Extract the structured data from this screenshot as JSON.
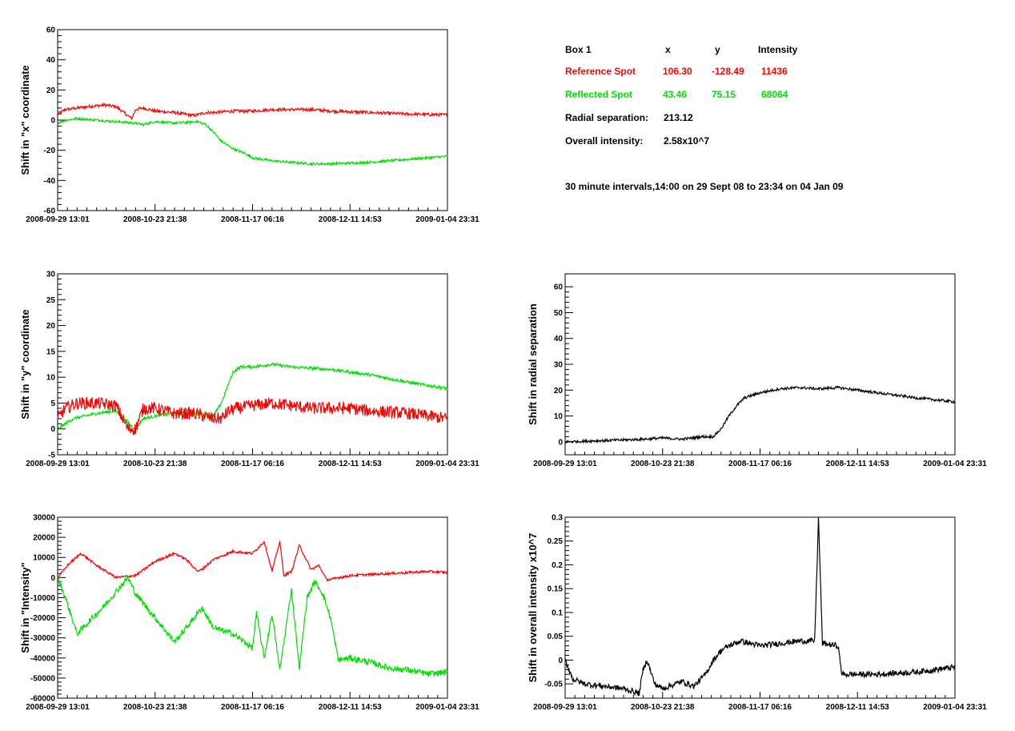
{
  "info": {
    "header": {
      "c0": "Box 1",
      "c1": "x",
      "c2": "y",
      "c3": "Intensity"
    },
    "reference": {
      "label": "Reference Spot",
      "x": "106.30",
      "y": "-128.49",
      "intensity": "11436"
    },
    "reflected": {
      "label": "Reflected Spot",
      "x": "43.46",
      "y": "75.15",
      "intensity": "68064"
    },
    "radial": {
      "label": "Radial separation:",
      "value": "213.12"
    },
    "overall": {
      "label": "Overall intensity:",
      "value": "2.58x10^7"
    },
    "note": "30 minute intervals,14:00 on 29 Sept 08 to 23:34 on 04 Jan 09"
  },
  "colors": {
    "reference": "#ff0000",
    "reflected": "#00dd00",
    "single": "#000000"
  },
  "chart_data": [
    {
      "id": "x_shift",
      "type": "line",
      "ylabel": "Shift in \"x\" coordinate",
      "ylim": [
        -60,
        60
      ],
      "yticks": [
        -60,
        -40,
        -20,
        0,
        20,
        40,
        60
      ],
      "xticks": [
        "2008-09-29 13:01",
        "2008-10-23 21:38",
        "2008-11-17 06:16",
        "2008-12-11 14:53",
        "2009-01-04 23:31"
      ],
      "series": [
        {
          "color": "reference",
          "noise": 1.0,
          "x": [
            0,
            0.02,
            0.05,
            0.08,
            0.12,
            0.15,
            0.19,
            0.2,
            0.22,
            0.25,
            0.3,
            0.35,
            0.38,
            0.4,
            0.45,
            0.5,
            0.55,
            0.6,
            0.65,
            0.7,
            0.8,
            0.9,
            1.0
          ],
          "values": [
            4,
            7,
            8,
            9,
            10,
            9,
            1,
            7,
            8,
            6,
            5,
            3,
            5,
            5,
            6,
            6,
            7,
            7,
            7,
            6,
            5,
            4,
            3.5
          ]
        },
        {
          "color": "reflected",
          "noise": 0.8,
          "x": [
            0,
            0.02,
            0.05,
            0.1,
            0.15,
            0.2,
            0.22,
            0.25,
            0.3,
            0.36,
            0.38,
            0.4,
            0.42,
            0.45,
            0.48,
            0.5,
            0.55,
            0.6,
            0.65,
            0.7,
            0.8,
            0.9,
            1.0
          ],
          "values": [
            -2,
            0,
            1,
            0,
            -1,
            -2,
            -3,
            -1,
            -2,
            -1,
            -3,
            -8,
            -14,
            -19,
            -22,
            -25,
            -27,
            -28,
            -29,
            -29,
            -28,
            -26,
            -24
          ]
        }
      ]
    },
    {
      "id": "y_shift",
      "type": "line",
      "ylabel": "Shift in \"y\" coordinate",
      "ylim": [
        -5,
        30
      ],
      "yticks": [
        -5,
        0,
        5,
        10,
        15,
        20,
        25,
        30
      ],
      "xticks": [
        "2008-09-29 13:01",
        "2008-10-23 21:38",
        "2008-11-17 06:16",
        "2008-12-11 14:53",
        "2009-01-04 23:31"
      ],
      "series": [
        {
          "color": "reflected",
          "noise": 0.3,
          "x": [
            0,
            0.04,
            0.1,
            0.15,
            0.19,
            0.2,
            0.22,
            0.25,
            0.3,
            0.35,
            0.4,
            0.42,
            0.44,
            0.45,
            0.47,
            0.5,
            0.55,
            0.6,
            0.7,
            0.8,
            0.9,
            1.0
          ],
          "values": [
            0,
            2,
            3,
            3.5,
            0.5,
            0,
            2,
            2.5,
            3,
            3,
            2.5,
            5,
            9,
            11,
            12,
            12,
            12.5,
            12,
            11.5,
            10.5,
            9,
            7.8
          ]
        },
        {
          "color": "reference",
          "noise": 1.2,
          "x": [
            0,
            0.02,
            0.05,
            0.1,
            0.15,
            0.18,
            0.2,
            0.22,
            0.25,
            0.3,
            0.35,
            0.4,
            0.42,
            0.44,
            0.46,
            0.5,
            0.55,
            0.6,
            0.65,
            0.7,
            0.75,
            0.8,
            0.9,
            1.0
          ],
          "values": [
            2,
            4,
            5,
            5,
            4.5,
            0,
            0,
            4,
            4,
            3,
            3,
            2,
            2,
            3.5,
            4,
            4.5,
            5,
            4.5,
            4,
            4,
            4,
            3.5,
            3,
            2
          ]
        }
      ]
    },
    {
      "id": "radial_shift",
      "type": "line",
      "ylabel": "Shift in radial separation",
      "ylim": [
        -5,
        65
      ],
      "yticks": [
        0,
        10,
        20,
        30,
        40,
        50,
        60
      ],
      "xticks": [
        "2008-09-29 13:01",
        "2008-10-23 21:38",
        "2008-11-17 06:16",
        "2008-12-11 14:53",
        "2009-01-04 23:31"
      ],
      "series": [
        {
          "color": "single",
          "noise": 0.5,
          "x": [
            0,
            0.1,
            0.2,
            0.25,
            0.3,
            0.35,
            0.38,
            0.4,
            0.42,
            0.44,
            0.46,
            0.5,
            0.55,
            0.6,
            0.65,
            0.7,
            0.75,
            0.8,
            0.9,
            1.0
          ],
          "values": [
            0,
            0.5,
            1,
            1.5,
            1,
            2,
            2,
            5,
            10,
            14,
            17,
            19,
            20.5,
            21,
            20.5,
            21,
            20,
            19,
            17,
            15.5
          ]
        }
      ]
    },
    {
      "id": "intensity_shift",
      "type": "line",
      "ylabel": "Shift in \"Intensity\"",
      "ylim": [
        -60000,
        30000
      ],
      "yticks": [
        -60000,
        -50000,
        -40000,
        -30000,
        -20000,
        -10000,
        0,
        10000,
        20000,
        30000
      ],
      "xticks": [
        "2008-09-29 13:01",
        "2008-10-23 21:38",
        "2008-11-17 06:16",
        "2008-12-11 14:53",
        "2009-01-04 23:31"
      ],
      "series": [
        {
          "color": "reference",
          "noise": 600,
          "x": [
            0,
            0.03,
            0.06,
            0.1,
            0.15,
            0.2,
            0.25,
            0.3,
            0.33,
            0.36,
            0.37,
            0.4,
            0.45,
            0.5,
            0.53,
            0.55,
            0.57,
            0.58,
            0.6,
            0.62,
            0.65,
            0.67,
            0.69,
            0.7,
            0.72,
            0.74,
            0.75,
            0.8,
            0.85,
            0.9,
            0.95,
            1.0
          ],
          "values": [
            0,
            7000,
            12000,
            6000,
            0,
            1000,
            8000,
            12000,
            9000,
            3000,
            4000,
            9000,
            13000,
            12000,
            18000,
            3000,
            18000,
            1000,
            3000,
            16000,
            4000,
            6000,
            -1000,
            -1000,
            0,
            500,
            1000,
            1500,
            2000,
            2500,
            3000,
            2500
          ]
        },
        {
          "color": "reflected",
          "noise": 1500,
          "x": [
            0,
            0.02,
            0.05,
            0.08,
            0.12,
            0.15,
            0.18,
            0.2,
            0.25,
            0.3,
            0.33,
            0.37,
            0.4,
            0.45,
            0.5,
            0.51,
            0.53,
            0.55,
            0.57,
            0.6,
            0.62,
            0.64,
            0.66,
            0.68,
            0.7,
            0.72,
            0.75,
            0.8,
            0.85,
            0.9,
            0.95,
            1.0
          ],
          "values": [
            0,
            -10000,
            -28000,
            -22000,
            -14000,
            -7000,
            0,
            -8000,
            -20000,
            -32000,
            -25000,
            -15000,
            -25000,
            -28000,
            -35000,
            -18000,
            -40000,
            -18000,
            -46000,
            -6000,
            -45000,
            -10000,
            -2000,
            -8000,
            -20000,
            -41000,
            -40000,
            -42000,
            -45000,
            -46000,
            -48000,
            -47000
          ]
        }
      ]
    },
    {
      "id": "overall_shift",
      "type": "line",
      "ylabel": "Shift in overall intensity x10^7",
      "ylim": [
        -0.08,
        0.3
      ],
      "yticks": [
        -0.05,
        0,
        0.05,
        0.1,
        0.15,
        0.2,
        0.25,
        0.3
      ],
      "xticks": [
        "2008-09-29 13:01",
        "2008-10-23 21:38",
        "2008-11-17 06:16",
        "2008-12-11 14:53",
        "2009-01-04 23:31"
      ],
      "series": [
        {
          "color": "single",
          "noise": 0.006,
          "x": [
            0,
            0.02,
            0.05,
            0.1,
            0.15,
            0.19,
            0.2,
            0.21,
            0.23,
            0.25,
            0.3,
            0.33,
            0.36,
            0.38,
            0.4,
            0.42,
            0.45,
            0.5,
            0.55,
            0.6,
            0.64,
            0.65,
            0.66,
            0.7,
            0.71,
            0.72,
            0.8,
            0.9,
            1.0
          ],
          "values": [
            0,
            -0.04,
            -0.05,
            -0.055,
            -0.06,
            -0.07,
            -0.02,
            0,
            -0.05,
            -0.06,
            -0.045,
            -0.055,
            -0.03,
            0,
            0.02,
            0.03,
            0.04,
            0.03,
            0.035,
            0.04,
            0.04,
            0.3,
            0.035,
            0.03,
            -0.03,
            -0.03,
            -0.03,
            -0.025,
            -0.015
          ]
        }
      ]
    }
  ]
}
